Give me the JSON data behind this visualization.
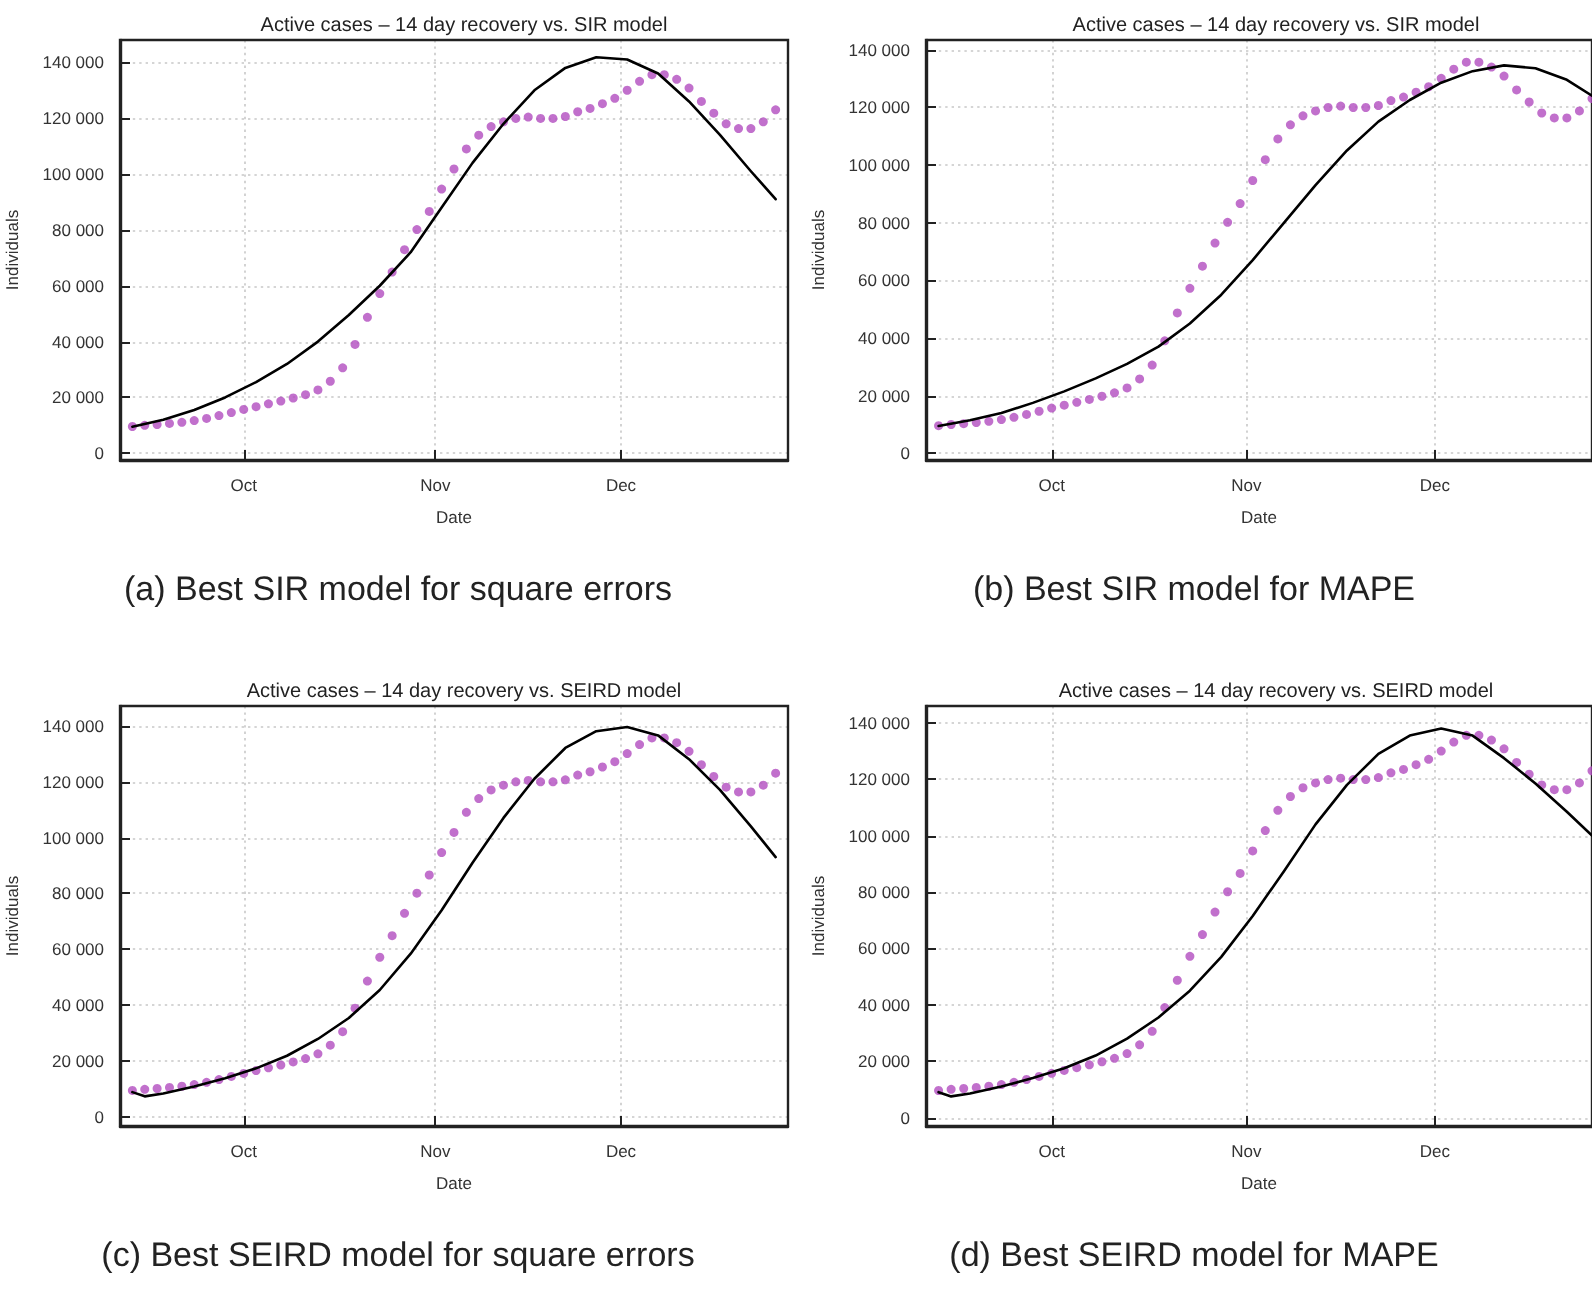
{
  "chart_data": [
    {
      "type": "scatter",
      "title": "Active cases – 14 day recovery vs. SIR model",
      "xlabel": "Date",
      "ylabel": "Individuals",
      "annotations": [
        "(a)  Best SIR model for square errors"
      ],
      "xlim": [
        "--09-11",
        "--12-28"
      ],
      "xticks": [
        {
          "value": "--10-01",
          "label": "Oct"
        },
        {
          "value": "--11-01",
          "label": "Nov"
        },
        {
          "value": "--12-01",
          "label": "Dec"
        }
      ],
      "ylim": [
        -2400,
        148000
      ],
      "yticks": [
        {
          "value": 0,
          "label": "0"
        },
        {
          "value": 20000,
          "label": "20 000"
        },
        {
          "value": 40000,
          "label": "40 000"
        },
        {
          "value": 60000,
          "label": "60 000"
        },
        {
          "value": 80000,
          "label": "80 000"
        },
        {
          "value": 100000,
          "label": "100 000"
        },
        {
          "value": 120000,
          "label": "120 000"
        },
        {
          "value": 140000,
          "label": "140 000"
        }
      ],
      "grid": true,
      "marker": "circle",
      "series": [
        {
          "color": "#b24cbf",
          "x": [
            "--09-13",
            "--09-15",
            "--09-17",
            "--09-19",
            "--09-21",
            "--09-23",
            "--09-25",
            "--09-27",
            "--09-29",
            "--10-01",
            "--10-03",
            "--10-05",
            "--10-07",
            "--10-09",
            "--10-11",
            "--10-13",
            "--10-15",
            "--10-17",
            "--10-19",
            "--10-21",
            "--10-23",
            "--10-25",
            "--10-27",
            "--10-29",
            "--10-31",
            "--11-02",
            "--11-04",
            "--11-06",
            "--11-08",
            "--11-10",
            "--11-12",
            "--11-14",
            "--11-16",
            "--11-18",
            "--11-20",
            "--11-22",
            "--11-24",
            "--11-26",
            "--11-28",
            "--11-30",
            "--12-02",
            "--12-04",
            "--12-06",
            "--12-08",
            "--12-10",
            "--12-12",
            "--12-14",
            "--12-16",
            "--12-18",
            "--12-20",
            "--12-22",
            "--12-24",
            "--12-26"
          ],
          "values": [
            9600,
            10000,
            10300,
            10700,
            11100,
            11700,
            12500,
            13500,
            14600,
            15700,
            16700,
            17700,
            18700,
            19800,
            21000,
            22700,
            25800,
            30600,
            39000,
            48700,
            57200,
            64900,
            72900,
            80100,
            86600,
            94600,
            101800,
            109000,
            113900,
            117000,
            118700,
            119900,
            120400,
            119900,
            119900,
            120600,
            122300,
            123500,
            125200,
            127100,
            130000,
            133200,
            135600,
            135600,
            133900,
            130800,
            126000,
            121800,
            118000,
            116300,
            116300,
            118700,
            123000
          ]
        },
        {
          "type": "line",
          "color": "#000000",
          "line_style": "solid",
          "marker": "none",
          "x": [
            "--09-13",
            "--09-18",
            "--09-23",
            "--09-28",
            "--10-03",
            "--10-08",
            "--10-13",
            "--10-18",
            "--10-23",
            "--10-28",
            "--11-02",
            "--11-07",
            "--11-12",
            "--11-17",
            "--11-22",
            "--11-27",
            "--12-02",
            "--12-07",
            "--12-12",
            "--12-17",
            "--12-22",
            "--12-26"
          ],
          "values": [
            9500,
            12000,
            15500,
            20000,
            25500,
            32000,
            40000,
            49500,
            60000,
            72000,
            88000,
            104000,
            118000,
            130000,
            138000,
            141800,
            141000,
            136000,
            126000,
            114000,
            101000,
            91000
          ]
        }
      ]
    },
    {
      "type": "scatter",
      "title": "Active cases – 14 day recovery vs. SIR model",
      "xlabel": "Date",
      "ylabel": "Individuals",
      "annotations": [
        "(b)  Best SIR model for MAPE"
      ],
      "xlim": [
        "--09-11",
        "--12-26"
      ],
      "xticks": [
        {
          "value": "--10-01",
          "label": "Oct"
        },
        {
          "value": "--11-01",
          "label": "Nov"
        },
        {
          "value": "--12-01",
          "label": "Dec"
        }
      ],
      "ylim": [
        -2300,
        143300
      ],
      "yticks": [
        {
          "value": 0,
          "label": "0"
        },
        {
          "value": 20000,
          "label": "20 000"
        },
        {
          "value": 40000,
          "label": "40 000"
        },
        {
          "value": 60000,
          "label": "60 000"
        },
        {
          "value": 80000,
          "label": "80 000"
        },
        {
          "value": 100000,
          "label": "100 000"
        },
        {
          "value": 120000,
          "label": "120 000"
        },
        {
          "value": 140000,
          "label": "140 000"
        }
      ],
      "grid": true,
      "marker": "circle",
      "series": [
        {
          "color": "#b24cbf",
          "x": [
            "--09-13",
            "--09-15",
            "--09-17",
            "--09-19",
            "--09-21",
            "--09-23",
            "--09-25",
            "--09-27",
            "--09-29",
            "--10-01",
            "--10-03",
            "--10-05",
            "--10-07",
            "--10-09",
            "--10-11",
            "--10-13",
            "--10-15",
            "--10-17",
            "--10-19",
            "--10-21",
            "--10-23",
            "--10-25",
            "--10-27",
            "--10-29",
            "--10-31",
            "--11-02",
            "--11-04",
            "--11-06",
            "--11-08",
            "--11-10",
            "--11-12",
            "--11-14",
            "--11-16",
            "--11-18",
            "--11-20",
            "--11-22",
            "--11-24",
            "--11-26",
            "--11-28",
            "--11-30",
            "--12-02",
            "--12-04",
            "--12-06",
            "--12-08",
            "--12-10",
            "--12-12",
            "--12-14",
            "--12-16",
            "--12-18",
            "--12-20",
            "--12-22",
            "--12-24",
            "--12-26"
          ],
          "values": [
            9600,
            10000,
            10300,
            10700,
            11100,
            11700,
            12500,
            13500,
            14600,
            15700,
            16700,
            17700,
            18700,
            19800,
            21000,
            22700,
            25800,
            30600,
            39000,
            48700,
            57200,
            64900,
            72900,
            80100,
            86600,
            94600,
            101800,
            109000,
            113900,
            117000,
            118700,
            119900,
            120400,
            119900,
            119900,
            120600,
            122300,
            123500,
            125200,
            127100,
            130000,
            133200,
            135600,
            135600,
            133900,
            130800,
            126000,
            121800,
            118000,
            116300,
            116300,
            118700,
            123000
          ]
        },
        {
          "type": "line",
          "color": "#000000",
          "line_style": "solid",
          "marker": "none",
          "x": [
            "--09-13",
            "--09-18",
            "--09-23",
            "--09-28",
            "--10-03",
            "--10-08",
            "--10-13",
            "--10-18",
            "--10-23",
            "--10-28",
            "--11-02",
            "--11-07",
            "--11-12",
            "--11-17",
            "--11-22",
            "--11-27",
            "--12-02",
            "--12-07",
            "--12-12",
            "--12-17",
            "--12-22",
            "--12-26"
          ],
          "values": [
            9500,
            11500,
            14000,
            17500,
            21500,
            26000,
            31000,
            37000,
            45000,
            55000,
            67000,
            80000,
            93000,
            105000,
            115000,
            122500,
            128500,
            132500,
            134500,
            133500,
            129500,
            124000
          ]
        }
      ]
    },
    {
      "type": "scatter",
      "title": "Active cases – 14 day recovery vs. SEIRD model",
      "xlabel": "Date",
      "ylabel": "Individuals",
      "annotations": [
        "(c)  Best SEIRD model for square errors"
      ],
      "xlim": [
        "--09-11",
        "--12-28"
      ],
      "xticks": [
        {
          "value": "--10-01",
          "label": "Oct"
        },
        {
          "value": "--11-01",
          "label": "Nov"
        },
        {
          "value": "--12-01",
          "label": "Dec"
        }
      ],
      "ylim": [
        -3100,
        147000
      ],
      "yticks": [
        {
          "value": 0,
          "label": "0"
        },
        {
          "value": 20000,
          "label": "20 000"
        },
        {
          "value": 40000,
          "label": "40 000"
        },
        {
          "value": 60000,
          "label": "60 000"
        },
        {
          "value": 80000,
          "label": "80 000"
        },
        {
          "value": 100000,
          "label": "100 000"
        },
        {
          "value": 120000,
          "label": "120 000"
        },
        {
          "value": 140000,
          "label": "140 000"
        }
      ],
      "grid": true,
      "marker": "circle",
      "series": [
        {
          "color": "#b24cbf",
          "x": [
            "--09-13",
            "--09-15",
            "--09-17",
            "--09-19",
            "--09-21",
            "--09-23",
            "--09-25",
            "--09-27",
            "--09-29",
            "--10-01",
            "--10-03",
            "--10-05",
            "--10-07",
            "--10-09",
            "--10-11",
            "--10-13",
            "--10-15",
            "--10-17",
            "--10-19",
            "--10-21",
            "--10-23",
            "--10-25",
            "--10-27",
            "--10-29",
            "--10-31",
            "--11-02",
            "--11-04",
            "--11-06",
            "--11-08",
            "--11-10",
            "--11-12",
            "--11-14",
            "--11-16",
            "--11-18",
            "--11-20",
            "--11-22",
            "--11-24",
            "--11-26",
            "--11-28",
            "--11-30",
            "--12-02",
            "--12-04",
            "--12-06",
            "--12-08",
            "--12-10",
            "--12-12",
            "--12-14",
            "--12-16",
            "--12-18",
            "--12-20",
            "--12-22",
            "--12-24",
            "--12-26"
          ],
          "values": [
            9600,
            10000,
            10300,
            10700,
            11100,
            11700,
            12500,
            13500,
            14600,
            15700,
            16700,
            17700,
            18700,
            19800,
            21000,
            22700,
            25800,
            30600,
            39000,
            48700,
            57200,
            64900,
            72900,
            80100,
            86600,
            94600,
            101800,
            109000,
            113900,
            117000,
            118700,
            119900,
            120400,
            119900,
            119900,
            120600,
            122300,
            123500,
            125200,
            127100,
            130000,
            133200,
            135600,
            135600,
            133900,
            130800,
            126000,
            121800,
            118000,
            116300,
            116300,
            118700,
            123000
          ]
        },
        {
          "type": "line",
          "color": "#000000",
          "line_style": "solid",
          "marker": "none",
          "x": [
            "--09-13",
            "--09-15",
            "--09-18",
            "--09-23",
            "--09-28",
            "--10-03",
            "--10-08",
            "--10-13",
            "--10-18",
            "--10-23",
            "--10-28",
            "--11-02",
            "--11-07",
            "--11-12",
            "--11-17",
            "--11-22",
            "--11-27",
            "--12-02",
            "--12-07",
            "--12-12",
            "--12-17",
            "--12-22",
            "--12-26"
          ],
          "values": [
            9000,
            7500,
            8500,
            11000,
            14000,
            17500,
            22000,
            28000,
            35500,
            45500,
            58500,
            74000,
            91000,
            107000,
            121000,
            132000,
            138000,
            139500,
            136500,
            128000,
            117000,
            104000,
            93000
          ]
        }
      ]
    },
    {
      "type": "scatter",
      "title": "Active cases – 14 day recovery vs. SEIRD model",
      "xlabel": "Date",
      "ylabel": "Individuals",
      "annotations": [
        "(d)  Best SEIRD model for MAPE"
      ],
      "xlim": [
        "--09-11",
        "--12-26"
      ],
      "xticks": [
        {
          "value": "--10-01",
          "label": "Oct"
        },
        {
          "value": "--11-01",
          "label": "Nov"
        },
        {
          "value": "--12-01",
          "label": "Dec"
        }
      ],
      "ylim": [
        -3000,
        146000
      ],
      "yticks": [
        {
          "value": 0,
          "label": "0"
        },
        {
          "value": 20000,
          "label": "20 000"
        },
        {
          "value": 40000,
          "label": "40 000"
        },
        {
          "value": 60000,
          "label": "60 000"
        },
        {
          "value": 80000,
          "label": "80 000"
        },
        {
          "value": 100000,
          "label": "100 000"
        },
        {
          "value": 120000,
          "label": "120 000"
        },
        {
          "value": 140000,
          "label": "140 000"
        }
      ],
      "grid": true,
      "marker": "circle",
      "series": [
        {
          "color": "#b24cbf",
          "x": [
            "--09-13",
            "--09-15",
            "--09-17",
            "--09-19",
            "--09-21",
            "--09-23",
            "--09-25",
            "--09-27",
            "--09-29",
            "--10-01",
            "--10-03",
            "--10-05",
            "--10-07",
            "--10-09",
            "--10-11",
            "--10-13",
            "--10-15",
            "--10-17",
            "--10-19",
            "--10-21",
            "--10-23",
            "--10-25",
            "--10-27",
            "--10-29",
            "--10-31",
            "--11-02",
            "--11-04",
            "--11-06",
            "--11-08",
            "--11-10",
            "--11-12",
            "--11-14",
            "--11-16",
            "--11-18",
            "--11-20",
            "--11-22",
            "--11-24",
            "--11-26",
            "--11-28",
            "--11-30",
            "--12-02",
            "--12-04",
            "--12-06",
            "--12-08",
            "--12-10",
            "--12-12",
            "--12-14",
            "--12-16",
            "--12-18",
            "--12-20",
            "--12-22",
            "--12-24",
            "--12-26"
          ],
          "values": [
            9600,
            10000,
            10300,
            10700,
            11100,
            11700,
            12500,
            13500,
            14600,
            15700,
            16700,
            17700,
            18700,
            19800,
            21000,
            22700,
            25800,
            30600,
            39000,
            48700,
            57200,
            64900,
            72900,
            80100,
            86600,
            94600,
            101800,
            109000,
            113900,
            117000,
            118700,
            119900,
            120400,
            119900,
            119900,
            120600,
            122300,
            123500,
            125200,
            127100,
            130000,
            133200,
            135600,
            135600,
            133900,
            130800,
            126000,
            121800,
            118000,
            116300,
            116300,
            118700,
            123000
          ]
        },
        {
          "type": "line",
          "color": "#000000",
          "line_style": "solid",
          "marker": "none",
          "x": [
            "--09-13",
            "--09-15",
            "--09-18",
            "--09-23",
            "--09-28",
            "--10-03",
            "--10-08",
            "--10-13",
            "--10-18",
            "--10-23",
            "--10-28",
            "--11-02",
            "--11-07",
            "--11-12",
            "--11-17",
            "--11-22",
            "--11-27",
            "--12-02",
            "--12-07",
            "--12-12",
            "--12-17",
            "--12-22",
            "--12-26"
          ],
          "values": [
            9000,
            7500,
            8500,
            11000,
            14000,
            17500,
            22000,
            28000,
            35500,
            45000,
            57000,
            71500,
            87500,
            104000,
            118000,
            129000,
            135500,
            138000,
            135500,
            127500,
            118500,
            108500,
            100000
          ]
        }
      ]
    }
  ]
}
